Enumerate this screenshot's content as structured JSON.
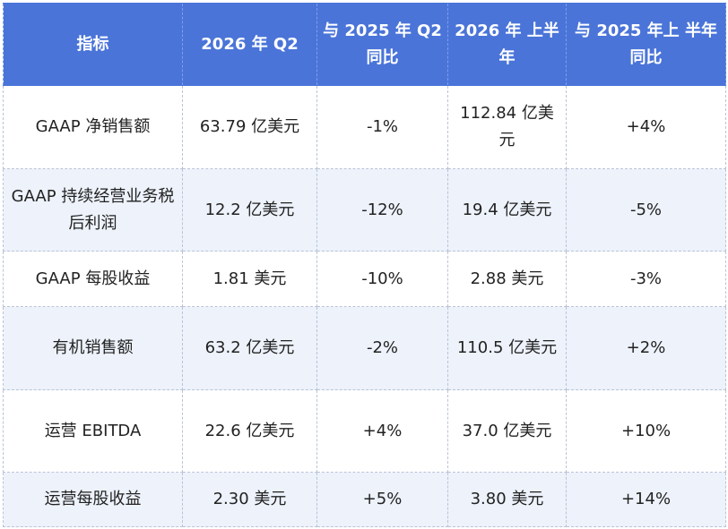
{
  "table": {
    "headers": [
      "指标",
      "2026 年 Q2",
      "与 2025 年 Q2 同比",
      "2026 年 上半年",
      "与 2025 年上 半年同比"
    ],
    "rows": [
      [
        "GAAP 净销售额",
        "63.79 亿美元",
        "-1%",
        "112.84 亿美元",
        "+4%"
      ],
      [
        "GAAP 持续经营业务税后利润",
        "12.2 亿美元",
        "-12%",
        "19.4 亿美元",
        "-5%"
      ],
      [
        "GAAP 每股收益",
        "1.81 美元",
        "-10%",
        "2.88 美元",
        "-3%"
      ],
      [
        "有机销售额",
        "63.2 亿美元",
        "-2%",
        "110.5 亿美元",
        "+2%"
      ],
      [
        "运营 EBITDA",
        "22.6 亿美元",
        "+4%",
        "37.0 亿美元",
        "+10%"
      ],
      [
        "运营每股收益",
        "2.30 美元",
        "+5%",
        "3.80 美元",
        "+14%"
      ]
    ]
  },
  "colors": {
    "header_bg": "#4a74d8",
    "header_text": "#ffffff",
    "stripe_bg": "#edf2fb"
  }
}
